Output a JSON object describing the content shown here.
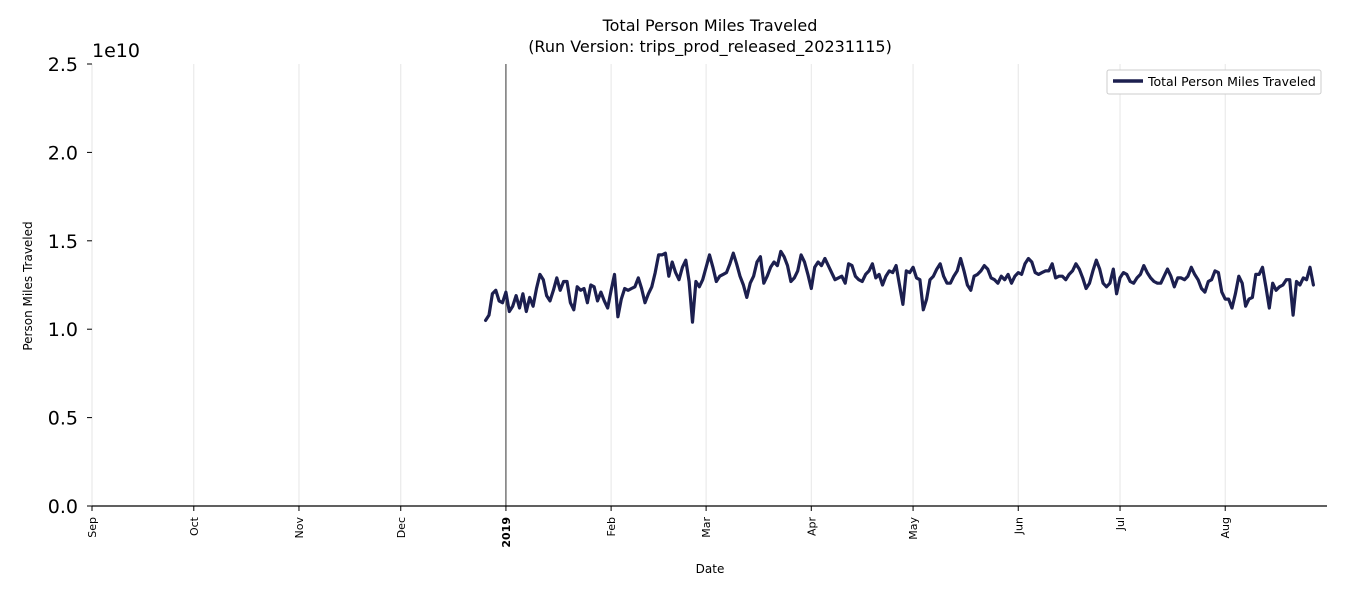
{
  "chart_data": {
    "type": "line",
    "title": "Total Person Miles Traveled",
    "subtitle": "(Run Version: trips_prod_released_20231115)",
    "xlabel": "Date",
    "ylabel": "Person Miles Traveled",
    "y_scale_label": "1e10",
    "ylim": [
      0,
      25000000000.0
    ],
    "xlim": [
      "2018-09-01",
      "2019-08-31"
    ],
    "grid": "vertical lines at month ticks",
    "legend_position": "top-right",
    "y_ticks": [
      {
        "value": 0,
        "label": "0.0"
      },
      {
        "value": 5000000000,
        "label": "0.5"
      },
      {
        "value": 10000000000,
        "label": "1.0"
      },
      {
        "value": 15000000000,
        "label": "1.5"
      },
      {
        "value": 20000000000,
        "label": "2.0"
      },
      {
        "value": 25000000000,
        "label": "2.5"
      }
    ],
    "x_ticks": [
      {
        "date": "2018-09-01",
        "label": "Sep",
        "bold": false
      },
      {
        "date": "2018-10-01",
        "label": "Oct",
        "bold": false
      },
      {
        "date": "2018-11-01",
        "label": "Nov",
        "bold": false
      },
      {
        "date": "2018-12-01",
        "label": "Dec",
        "bold": false
      },
      {
        "date": "2019-01-01",
        "label": "2019",
        "bold": true
      },
      {
        "date": "2019-02-01",
        "label": "Feb",
        "bold": false
      },
      {
        "date": "2019-03-01",
        "label": "Mar",
        "bold": false
      },
      {
        "date": "2019-04-01",
        "label": "Apr",
        "bold": false
      },
      {
        "date": "2019-05-01",
        "label": "May",
        "bold": false
      },
      {
        "date": "2019-06-01",
        "label": "Jun",
        "bold": false
      },
      {
        "date": "2019-07-01",
        "label": "Jul",
        "bold": false
      },
      {
        "date": "2019-08-01",
        "label": "Aug",
        "bold": false
      }
    ],
    "year_marker_date": "2019-01-01",
    "series": [
      {
        "name": "Total Person Miles Traveled",
        "color": "#1c1f4f",
        "start_date": "2018-12-26",
        "values_1e10": [
          1.05,
          1.08,
          1.2,
          1.22,
          1.16,
          1.15,
          1.21,
          1.1,
          1.13,
          1.19,
          1.12,
          1.2,
          1.1,
          1.18,
          1.13,
          1.23,
          1.31,
          1.28,
          1.19,
          1.16,
          1.22,
          1.29,
          1.22,
          1.27,
          1.27,
          1.15,
          1.11,
          1.24,
          1.22,
          1.23,
          1.15,
          1.25,
          1.24,
          1.16,
          1.21,
          1.16,
          1.12,
          1.22,
          1.31,
          1.07,
          1.17,
          1.23,
          1.22,
          1.23,
          1.24,
          1.29,
          1.23,
          1.15,
          1.2,
          1.24,
          1.32,
          1.42,
          1.42,
          1.43,
          1.3,
          1.38,
          1.32,
          1.28,
          1.35,
          1.39,
          1.27,
          1.04,
          1.27,
          1.24,
          1.28,
          1.35,
          1.42,
          1.35,
          1.27,
          1.3,
          1.31,
          1.32,
          1.37,
          1.43,
          1.37,
          1.3,
          1.25,
          1.18,
          1.26,
          1.3,
          1.38,
          1.41,
          1.26,
          1.3,
          1.35,
          1.38,
          1.36,
          1.44,
          1.41,
          1.36,
          1.27,
          1.29,
          1.33,
          1.42,
          1.38,
          1.31,
          1.23,
          1.35,
          1.38,
          1.36,
          1.4,
          1.36,
          1.32,
          1.28,
          1.29,
          1.3,
          1.26,
          1.37,
          1.36,
          1.3,
          1.28,
          1.27,
          1.31,
          1.33,
          1.37,
          1.29,
          1.31,
          1.25,
          1.3,
          1.33,
          1.32,
          1.36,
          1.25,
          1.14,
          1.33,
          1.32,
          1.35,
          1.29,
          1.28,
          1.11,
          1.17,
          1.28,
          1.3,
          1.34,
          1.37,
          1.3,
          1.26,
          1.26,
          1.3,
          1.33,
          1.4,
          1.33,
          1.25,
          1.22,
          1.3,
          1.31,
          1.33,
          1.36,
          1.34,
          1.29,
          1.28,
          1.26,
          1.3,
          1.28,
          1.31,
          1.26,
          1.3,
          1.32,
          1.31,
          1.37,
          1.4,
          1.38,
          1.32,
          1.31,
          1.32,
          1.33,
          1.33,
          1.37,
          1.29,
          1.3,
          1.3,
          1.28,
          1.31,
          1.33,
          1.37,
          1.34,
          1.29,
          1.23,
          1.26,
          1.33,
          1.39,
          1.34,
          1.26,
          1.24,
          1.26,
          1.34,
          1.2,
          1.29,
          1.32,
          1.31,
          1.27,
          1.26,
          1.29,
          1.31,
          1.36,
          1.32,
          1.29,
          1.27,
          1.26,
          1.26,
          1.3,
          1.34,
          1.3,
          1.24,
          1.29,
          1.29,
          1.28,
          1.3,
          1.35,
          1.31,
          1.28,
          1.23,
          1.21,
          1.27,
          1.28,
          1.33,
          1.32,
          1.21,
          1.17,
          1.17,
          1.12,
          1.2,
          1.3,
          1.26,
          1.13,
          1.17,
          1.18,
          1.31,
          1.31,
          1.35,
          1.24,
          1.12,
          1.26,
          1.22,
          1.24,
          1.25,
          1.28,
          1.28,
          1.08,
          1.27,
          1.25,
          1.29,
          1.28,
          1.35,
          1.25
        ]
      }
    ]
  }
}
